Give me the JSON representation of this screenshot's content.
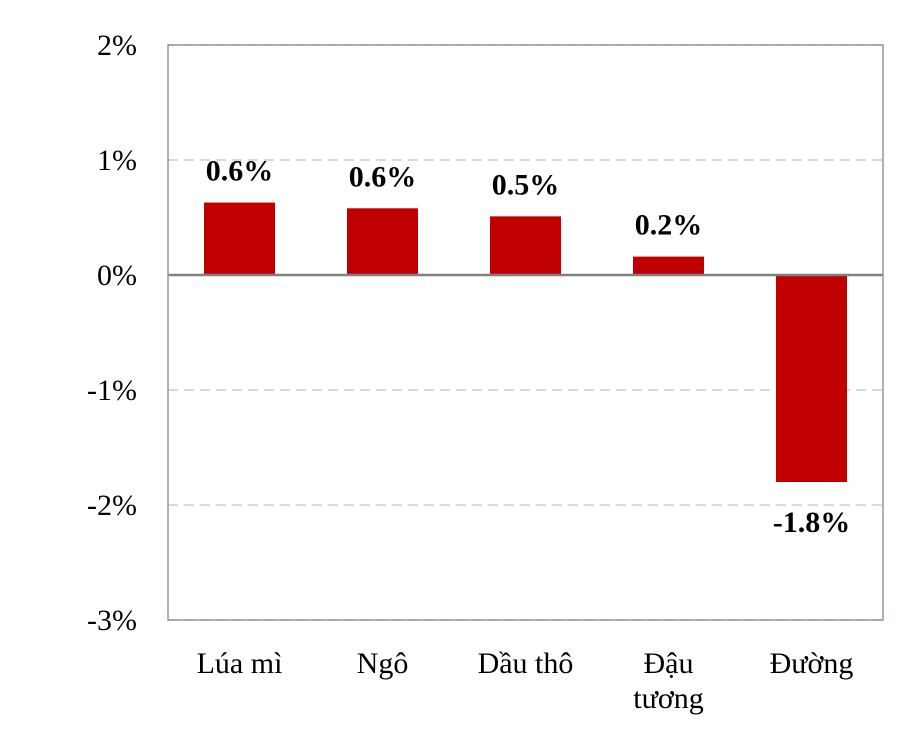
{
  "chart_data": {
    "type": "bar",
    "title": "",
    "xlabel": "",
    "ylabel": "",
    "categories": [
      [
        "Lúa mì"
      ],
      [
        "Ngô"
      ],
      [
        "Dầu thô"
      ],
      [
        "Đậu",
        "tương"
      ],
      [
        "Đường"
      ]
    ],
    "values": [
      0.63,
      0.58,
      0.51,
      0.16,
      -1.8
    ],
    "data_labels": [
      "0.6%",
      "0.6%",
      "0.5%",
      "0.2%",
      "-1.8%"
    ],
    "ylim": [
      -3,
      2
    ],
    "yticks": [
      2,
      1,
      0,
      -1,
      -2,
      -3
    ],
    "ytick_labels": [
      "2%",
      "1%",
      "0%",
      "-1%",
      "-2%",
      "-3%"
    ],
    "grid": true,
    "legend": "none",
    "colors": {
      "bar": "#C00000",
      "grid": "#D9D9D9",
      "zero_line": "#808080",
      "frame": "#A09680",
      "text": "#000000"
    }
  }
}
